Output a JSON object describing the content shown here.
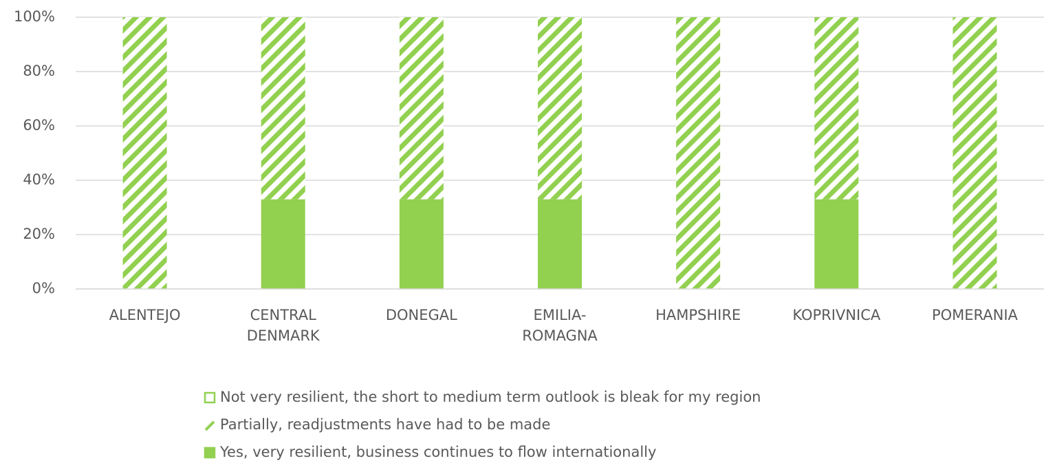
{
  "chart_data": {
    "type": "stacked_bar",
    "categories": [
      "ALENTEJO",
      "CENTRAL DENMARK",
      "DONEGAL",
      "EMILIA-ROMAGNA",
      "HAMPSHIRE",
      "KOPRIVNICA",
      "POMERANIA"
    ],
    "series": [
      {
        "name": "Yes, very resilient, business continues to flow internationally",
        "color": "#92d050",
        "pattern": "solid",
        "values": [
          0,
          33,
          33,
          33,
          0,
          33,
          0
        ]
      },
      {
        "name": "Partially, readjustments have had to be made",
        "color": "#92d050",
        "pattern": "hatch",
        "values": [
          100,
          67,
          67,
          67,
          100,
          67,
          100
        ]
      },
      {
        "name": "Not very resilient, the short to medium term outlook is bleak for my region",
        "color": "#92d050",
        "pattern": "outline",
        "values": [
          0,
          0,
          0,
          0,
          0,
          0,
          0
        ]
      }
    ],
    "ylim": [
      0,
      100
    ],
    "yticks": [
      {
        "value": 0,
        "label": "0%"
      },
      {
        "value": 20,
        "label": "20%"
      },
      {
        "value": 40,
        "label": "40%"
      },
      {
        "value": 60,
        "label": "60%"
      },
      {
        "value": 80,
        "label": "80%"
      },
      {
        "value": 100,
        "label": "100%"
      }
    ],
    "grid": true,
    "legend": "bottom"
  }
}
